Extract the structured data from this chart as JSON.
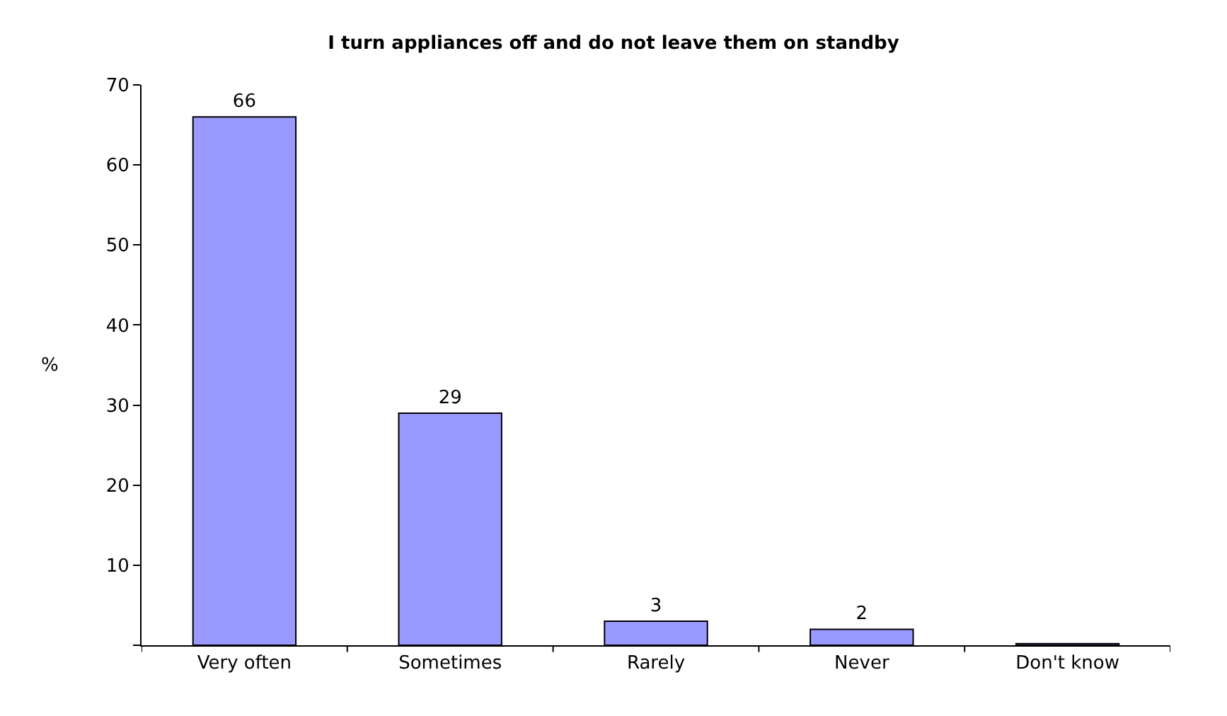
{
  "chart_data": {
    "type": "bar",
    "title": "I turn appliances off and do not leave them on standby",
    "ylabel": "%",
    "categories": [
      "Very often",
      "Sometimes",
      "Rarely",
      "Never",
      "Don't know"
    ],
    "values": [
      66,
      29,
      3,
      2,
      0.2
    ],
    "value_labels": [
      "66",
      "29",
      "3",
      "2",
      null
    ],
    "color": "#9999ff",
    "ylim": [
      0,
      70
    ],
    "yticks": [
      {
        "value": 0,
        "label": null
      },
      10,
      20,
      30,
      40,
      50,
      60,
      70
    ]
  }
}
